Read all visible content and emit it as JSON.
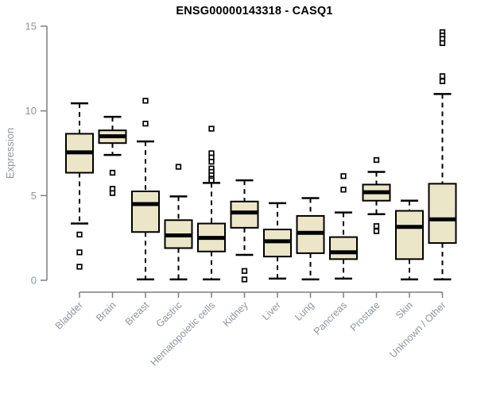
{
  "title": "ENSG00000143318 - CASQ1",
  "chart_data": {
    "type": "boxplot",
    "title": "ENSG00000143318 - CASQ1",
    "xlabel": "",
    "ylabel": "Expression",
    "ylim": [
      0,
      15
    ],
    "yticks": [
      0,
      5,
      10,
      15
    ],
    "grid": false,
    "legend": "none",
    "categories": [
      "Bladder",
      "Brain",
      "Breast",
      "Gastric",
      "Hematopoietic cells",
      "Kidney",
      "Liver",
      "Lung",
      "Pancreas",
      "Prostate",
      "Skin",
      "Unknown / Other"
    ],
    "series": [
      {
        "category": "Bladder",
        "whisker_low": 3.35,
        "q1": 6.35,
        "median": 7.55,
        "q3": 8.65,
        "whisker_high": 10.45,
        "outliers": [
          2.7,
          1.65,
          0.8
        ]
      },
      {
        "category": "Brain",
        "whisker_low": 7.4,
        "q1": 8.1,
        "median": 8.5,
        "q3": 8.85,
        "whisker_high": 9.65,
        "outliers": [
          6.35,
          5.4,
          5.15
        ]
      },
      {
        "category": "Breast",
        "whisker_low": 0.05,
        "q1": 2.85,
        "median": 4.5,
        "q3": 5.25,
        "whisker_high": 8.2,
        "outliers": [
          10.6,
          9.25
        ]
      },
      {
        "category": "Gastric",
        "whisker_low": 0.05,
        "q1": 1.9,
        "median": 2.65,
        "q3": 3.55,
        "whisker_high": 4.95,
        "outliers": [
          6.7
        ]
      },
      {
        "category": "Hematopoietic cells",
        "whisker_low": 0.05,
        "q1": 1.7,
        "median": 2.5,
        "q3": 3.35,
        "whisker_high": 5.75,
        "outliers": [
          8.95,
          7.5,
          7.25,
          7.0,
          6.6,
          6.4,
          6.2,
          6.0,
          5.9
        ]
      },
      {
        "category": "Kidney",
        "whisker_low": 1.5,
        "q1": 3.1,
        "median": 4.0,
        "q3": 4.65,
        "whisker_high": 5.9,
        "outliers": [
          0.55,
          0.05
        ]
      },
      {
        "category": "Liver",
        "whisker_low": 0.1,
        "q1": 1.4,
        "median": 2.3,
        "q3": 3.0,
        "whisker_high": 4.55,
        "outliers": []
      },
      {
        "category": "Lung",
        "whisker_low": 0.05,
        "q1": 1.6,
        "median": 2.8,
        "q3": 3.8,
        "whisker_high": 4.85,
        "outliers": []
      },
      {
        "category": "Pancreas",
        "whisker_low": 0.1,
        "q1": 1.25,
        "median": 1.65,
        "q3": 2.55,
        "whisker_high": 4.0,
        "outliers": [
          6.15,
          5.35
        ]
      },
      {
        "category": "Prostate",
        "whisker_low": 3.9,
        "q1": 4.7,
        "median": 5.2,
        "q3": 5.65,
        "whisker_high": 6.4,
        "outliers": [
          7.1,
          3.2,
          2.9
        ]
      },
      {
        "category": "Skin",
        "whisker_low": 0.05,
        "q1": 1.25,
        "median": 3.15,
        "q3": 4.1,
        "whisker_high": 4.7,
        "outliers": []
      },
      {
        "category": "Unknown / Other",
        "whisker_low": 0.05,
        "q1": 2.2,
        "median": 3.6,
        "q3": 5.7,
        "whisker_high": 11.0,
        "outliers": [
          14.65,
          14.45,
          14.25,
          14.0,
          12.05,
          11.75
        ]
      }
    ],
    "colors": {
      "box_fill": "#ece6c8",
      "box_stroke": "#000000",
      "median": "#000000",
      "whisker": "#000000",
      "axis": "#7f7f7f",
      "tick_label": "#8e959e",
      "category_label": "#8e959e",
      "title": "#000000",
      "outlier_fill": "#ffffff"
    }
  }
}
